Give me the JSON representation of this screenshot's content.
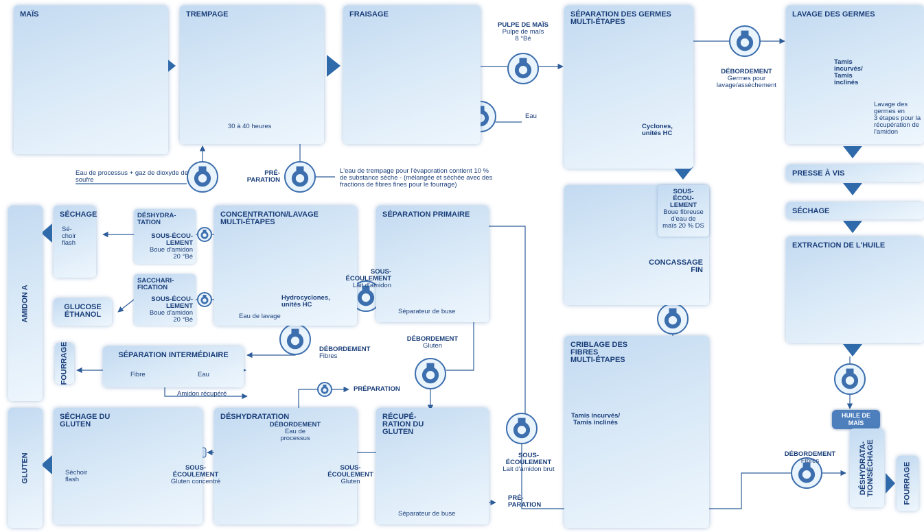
{
  "boxes": [
    {
      "title": "MAÏS"
    },
    {
      "title": "TREMPAGE",
      "text": "30 à 40 heures"
    },
    {
      "title": "FRAISAGE"
    },
    {
      "title": "SÉPARATION DES GERMES\nMULTI-ÉTAPES",
      "text": "Cyclones,\nunités HC"
    },
    {
      "title": "LAVAGE DES GERMES",
      "text": "Tamis\nincurvés/\nTamis\ninclinés",
      "note": "Lavage des\ngermes en\n3 étapes pour la\nrécupération de\nl'amidon"
    },
    {
      "title": "PRESSE À VIS"
    },
    {
      "title": "SÉCHAGE"
    },
    {
      "title": "EXTRACTION DE L'HUILE"
    },
    {
      "title": "HUILE DE\nMAÏS"
    },
    {
      "title": "CONCASSAGE\nFIN"
    },
    {
      "title": "CRIBLAGE DES\nFIBRES\nMULTI-ÉTAPES",
      "text": "Tamis incurvés/\nTamis inclinés"
    },
    {
      "title": "SÉPARATION PRIMAIRE",
      "text": "Séparateur de buse"
    },
    {
      "title": "CONCENTRATION/LAVAGE\nMULTI-ÉTAPES",
      "text": "Hydrocyclones,\nunités HC"
    },
    {
      "title": "SÉCHAGE",
      "text": "Sé-\nchoir\nflash"
    },
    {
      "title": "GLUCOSE\nÉTHANOL"
    },
    {
      "title": "SÉPARATION INTERMÉDIAIRE"
    },
    {
      "title": "SÉCHAGE DU\nGLUTEN",
      "text": "Séchoir\nflash"
    },
    {
      "title": "DÉSHYDRATATION"
    },
    {
      "title": "RÉCUPÉ-\nRATION DU\nGLUTEN",
      "text": "Séparateur de buse"
    },
    {
      "title": "AMIDON A"
    },
    {
      "title": "GLUTEN"
    },
    {
      "title": "FOURRAGE"
    },
    {
      "title": "DÉSHYDRATA-\nTION/SÉCHAGE"
    },
    {
      "title": "FOURRAGE"
    }
  ],
  "flows": [
    {
      "title": "PULPE DE MAÏS",
      "text": "Pulpe de maïs\n8 °Bé"
    },
    {
      "text": "Eau"
    },
    {
      "title": "DÉBORDEMENT",
      "text": "Germes pour\nlavage/assèchement"
    },
    {
      "text": "Eau de processus + gaz de dioxyde de soufre"
    },
    {
      "title": "PRÉ-\nPARATION"
    },
    {
      "text": "L'eau de trempage pour l'évaporation contient 10 %\nde substance sèche - (mélangée et séchée avec des\nfractions de fibres fines pour le fourrage)"
    },
    {
      "title": "SOUS-\nÉCOU-\nLEMENT",
      "text": "Boue fibreuse\nd'eau de\nmaïs 20 % DS"
    },
    {
      "title": "DÉSHYDRA-\nTATION"
    },
    {
      "title": "SOUS-ÉCOU-\nLEMENT",
      "text": "Boue d'amidon\n20 °Bé"
    },
    {
      "title": "SACCHARI-\nFICATION"
    },
    {
      "title": "SOUS-ÉCOU-\nLEMENT",
      "text": "Boue d'amidon\n20 °Bé"
    },
    {
      "title": "SOUS-\nÉCOULEMENT",
      "text": "Lait d'amidon"
    },
    {
      "text": "Eau de lavage"
    },
    {
      "title": "DÉBORDEMENT",
      "text": "Fibres"
    },
    {
      "title": "DÉBORDEMENT",
      "text": "Gluten"
    },
    {
      "text": "Fibre"
    },
    {
      "text": "Eau"
    },
    {
      "text": "Amidon récupéré"
    },
    {
      "title": "PRÉPARATION"
    },
    {
      "title": "DÉBORDEMENT",
      "text": "Eau de\nprocessus"
    },
    {
      "title": "SOUS-\nÉCOULEMENT",
      "text": "Gluten concentré"
    },
    {
      "title": "SOUS-\nÉCOULEMENT",
      "text": "Gluten"
    },
    {
      "title": "PRÉ-\nPARATION"
    },
    {
      "title": "SOUS-\nÉCOULEMENT",
      "text": "Lait d'amidon brut"
    },
    {
      "title": "DÉBORDEMENT",
      "text": "Fibres"
    }
  ]
}
